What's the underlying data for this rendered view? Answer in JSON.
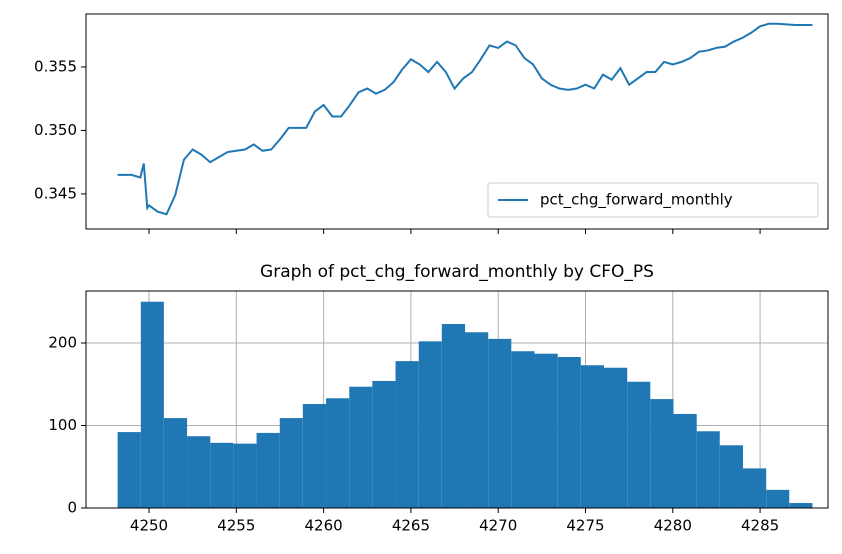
{
  "chart_data": [
    {
      "type": "line",
      "x": [
        4248.2,
        4249.0,
        4249.5,
        4249.7,
        4249.9,
        4250,
        4250.5,
        4251,
        4251.5,
        4252,
        4252.5,
        4253,
        4253.5,
        4254,
        4254.5,
        4255,
        4255.5,
        4256,
        4256.5,
        4257,
        4257.5,
        4258,
        4258.5,
        4259,
        4259.5,
        4260,
        4260.5,
        4261,
        4261.5,
        4262,
        4262.5,
        4263,
        4263.5,
        4264,
        4264.5,
        4265,
        4265.5,
        4266,
        4266.5,
        4267,
        4267.5,
        4268,
        4268.5,
        4269,
        4269.5,
        4270,
        4270.5,
        4271,
        4271.5,
        4272,
        4272.5,
        4273,
        4273.5,
        4274,
        4274.5,
        4275,
        4275.5,
        4276,
        4276.5,
        4277,
        4277.5,
        4278,
        4278.5,
        4279,
        4279.5,
        4280,
        4280.5,
        4281,
        4281.5,
        4282,
        4282.5,
        4283,
        4283.5,
        4284,
        4284.5,
        4285,
        4285.5,
        4286,
        4287,
        4288
      ],
      "series": [
        {
          "name": "pct_chg_forward_monthly",
          "color": "#1f77b4",
          "values": [
            0.3465,
            0.3465,
            0.3463,
            0.3474,
            0.3439,
            0.3441,
            0.3436,
            0.3434,
            0.3449,
            0.3477,
            0.3485,
            0.3481,
            0.3475,
            0.3479,
            0.3483,
            0.3484,
            0.3485,
            0.3489,
            0.3484,
            0.3485,
            0.3493,
            0.3502,
            0.3502,
            0.3502,
            0.3515,
            0.352,
            0.3511,
            0.3511,
            0.352,
            0.353,
            0.3533,
            0.3529,
            0.3532,
            0.3538,
            0.3548,
            0.3556,
            0.3552,
            0.3546,
            0.3554,
            0.3546,
            0.3533,
            0.3541,
            0.3546,
            0.3556,
            0.3567,
            0.3565,
            0.357,
            0.3567,
            0.3557,
            0.3552,
            0.3541,
            0.3536,
            0.3533,
            0.3532,
            0.3533,
            0.3536,
            0.3533,
            0.3544,
            0.354,
            0.3549,
            0.3536,
            0.3541,
            0.3546,
            0.3546,
            0.3554,
            0.3552,
            0.3554,
            0.3557,
            0.3562,
            0.3563,
            0.3565,
            0.3566,
            0.357,
            0.3573,
            0.3577,
            0.3582,
            0.3584,
            0.3584,
            0.3583,
            0.3583
          ]
        }
      ],
      "xlim": [
        4246.39,
        4288.89
      ],
      "xticks": [
        4250,
        4255,
        4260,
        4265,
        4270,
        4275,
        4280,
        4285
      ],
      "show_xtick_labels": false,
      "ylim": [
        0.34224,
        0.35917
      ],
      "yticks": [
        0.345,
        {
          "value": 0.35,
          "label": "0.350"
        },
        0.355
      ],
      "grid": false,
      "legend": "lower right"
    },
    {
      "type": "histogram",
      "title": "Graph of pct_chg_forward_monthly by CFO_PS",
      "color": "#1f77b4",
      "bins": [
        4248.2,
        4249.53,
        4250.85,
        4252.18,
        4253.51,
        4254.83,
        4256.16,
        4257.49,
        4258.81,
        4260.14,
        4261.47,
        4262.79,
        4264.12,
        4265.45,
        4266.77,
        4268.1,
        4269.43,
        4270.75,
        4272.08,
        4273.41,
        4274.73,
        4276.06,
        4277.39,
        4278.71,
        4280.04,
        4281.37,
        4282.69,
        4284.02,
        4285.35,
        4286.67,
        4288.0
      ],
      "values": [
        92,
        250,
        109,
        87,
        79,
        78,
        91,
        109,
        126,
        133,
        147,
        154,
        178,
        202,
        223,
        213,
        205,
        190,
        187,
        183,
        173,
        170,
        153,
        132,
        114,
        93,
        76,
        48,
        22,
        6
      ],
      "xlim": [
        4246.39,
        4288.89
      ],
      "xticks": [
        4250,
        4255,
        4260,
        4265,
        4270,
        4275,
        4280,
        4285
      ],
      "show_xtick_labels": true,
      "ylim": [
        0,
        263
      ],
      "yticks": [
        0,
        100,
        200
      ],
      "grid": true
    }
  ]
}
